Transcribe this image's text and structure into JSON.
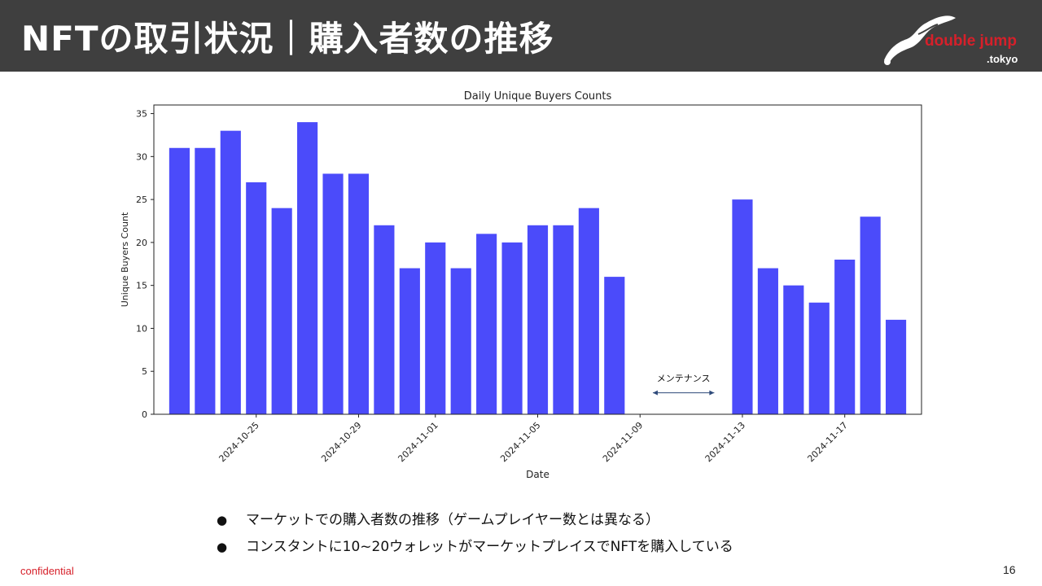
{
  "slide": {
    "title": "NFTの取引状況｜購入者数の推移",
    "logo_word": "double jump",
    "logo_domain": ".tokyo",
    "bullets": [
      "マーケットでの購入者数の推移（ゲームプレイヤー数とは異なる）",
      "コンスタントに10~20ウォレットがマーケットプレイスでNFTを購入している"
    ],
    "footer_left": "confidential",
    "page_number": "16"
  },
  "colors": {
    "header_bg": "#3f3f3f",
    "bar": "#4b4bfa",
    "accent_red": "#d6202a"
  },
  "chart_data": {
    "type": "bar",
    "title": "Daily Unique Buyers Counts",
    "xlabel": "Date",
    "ylabel": "Unique Buyers Count",
    "ylim": [
      0,
      36
    ],
    "yticks": [
      0,
      5,
      10,
      15,
      20,
      25,
      30,
      35
    ],
    "xlim": [
      "2024-10-21",
      "2024-11-20"
    ],
    "xticks": [
      "2024-10-25",
      "2024-10-29",
      "2024-11-01",
      "2024-11-05",
      "2024-11-09",
      "2024-11-13",
      "2024-11-17"
    ],
    "grid": false,
    "categories": [
      "2024-10-22",
      "2024-10-23",
      "2024-10-24",
      "2024-10-25",
      "2024-10-26",
      "2024-10-27",
      "2024-10-28",
      "2024-10-29",
      "2024-10-30",
      "2024-10-31",
      "2024-11-01",
      "2024-11-02",
      "2024-11-03",
      "2024-11-04",
      "2024-11-05",
      "2024-11-06",
      "2024-11-07",
      "2024-11-08",
      "2024-11-13",
      "2024-11-14",
      "2024-11-15",
      "2024-11-16",
      "2024-11-17",
      "2024-11-18",
      "2024-11-19"
    ],
    "values": [
      31,
      31,
      33,
      27,
      24,
      34,
      28,
      28,
      22,
      17,
      20,
      17,
      21,
      20,
      22,
      22,
      24,
      16,
      25,
      17,
      15,
      13,
      18,
      23,
      11
    ],
    "annotations": [
      {
        "text": "メンテナンス",
        "from": "2024-11-09",
        "to": "2024-11-12",
        "y": 2.5
      }
    ]
  }
}
